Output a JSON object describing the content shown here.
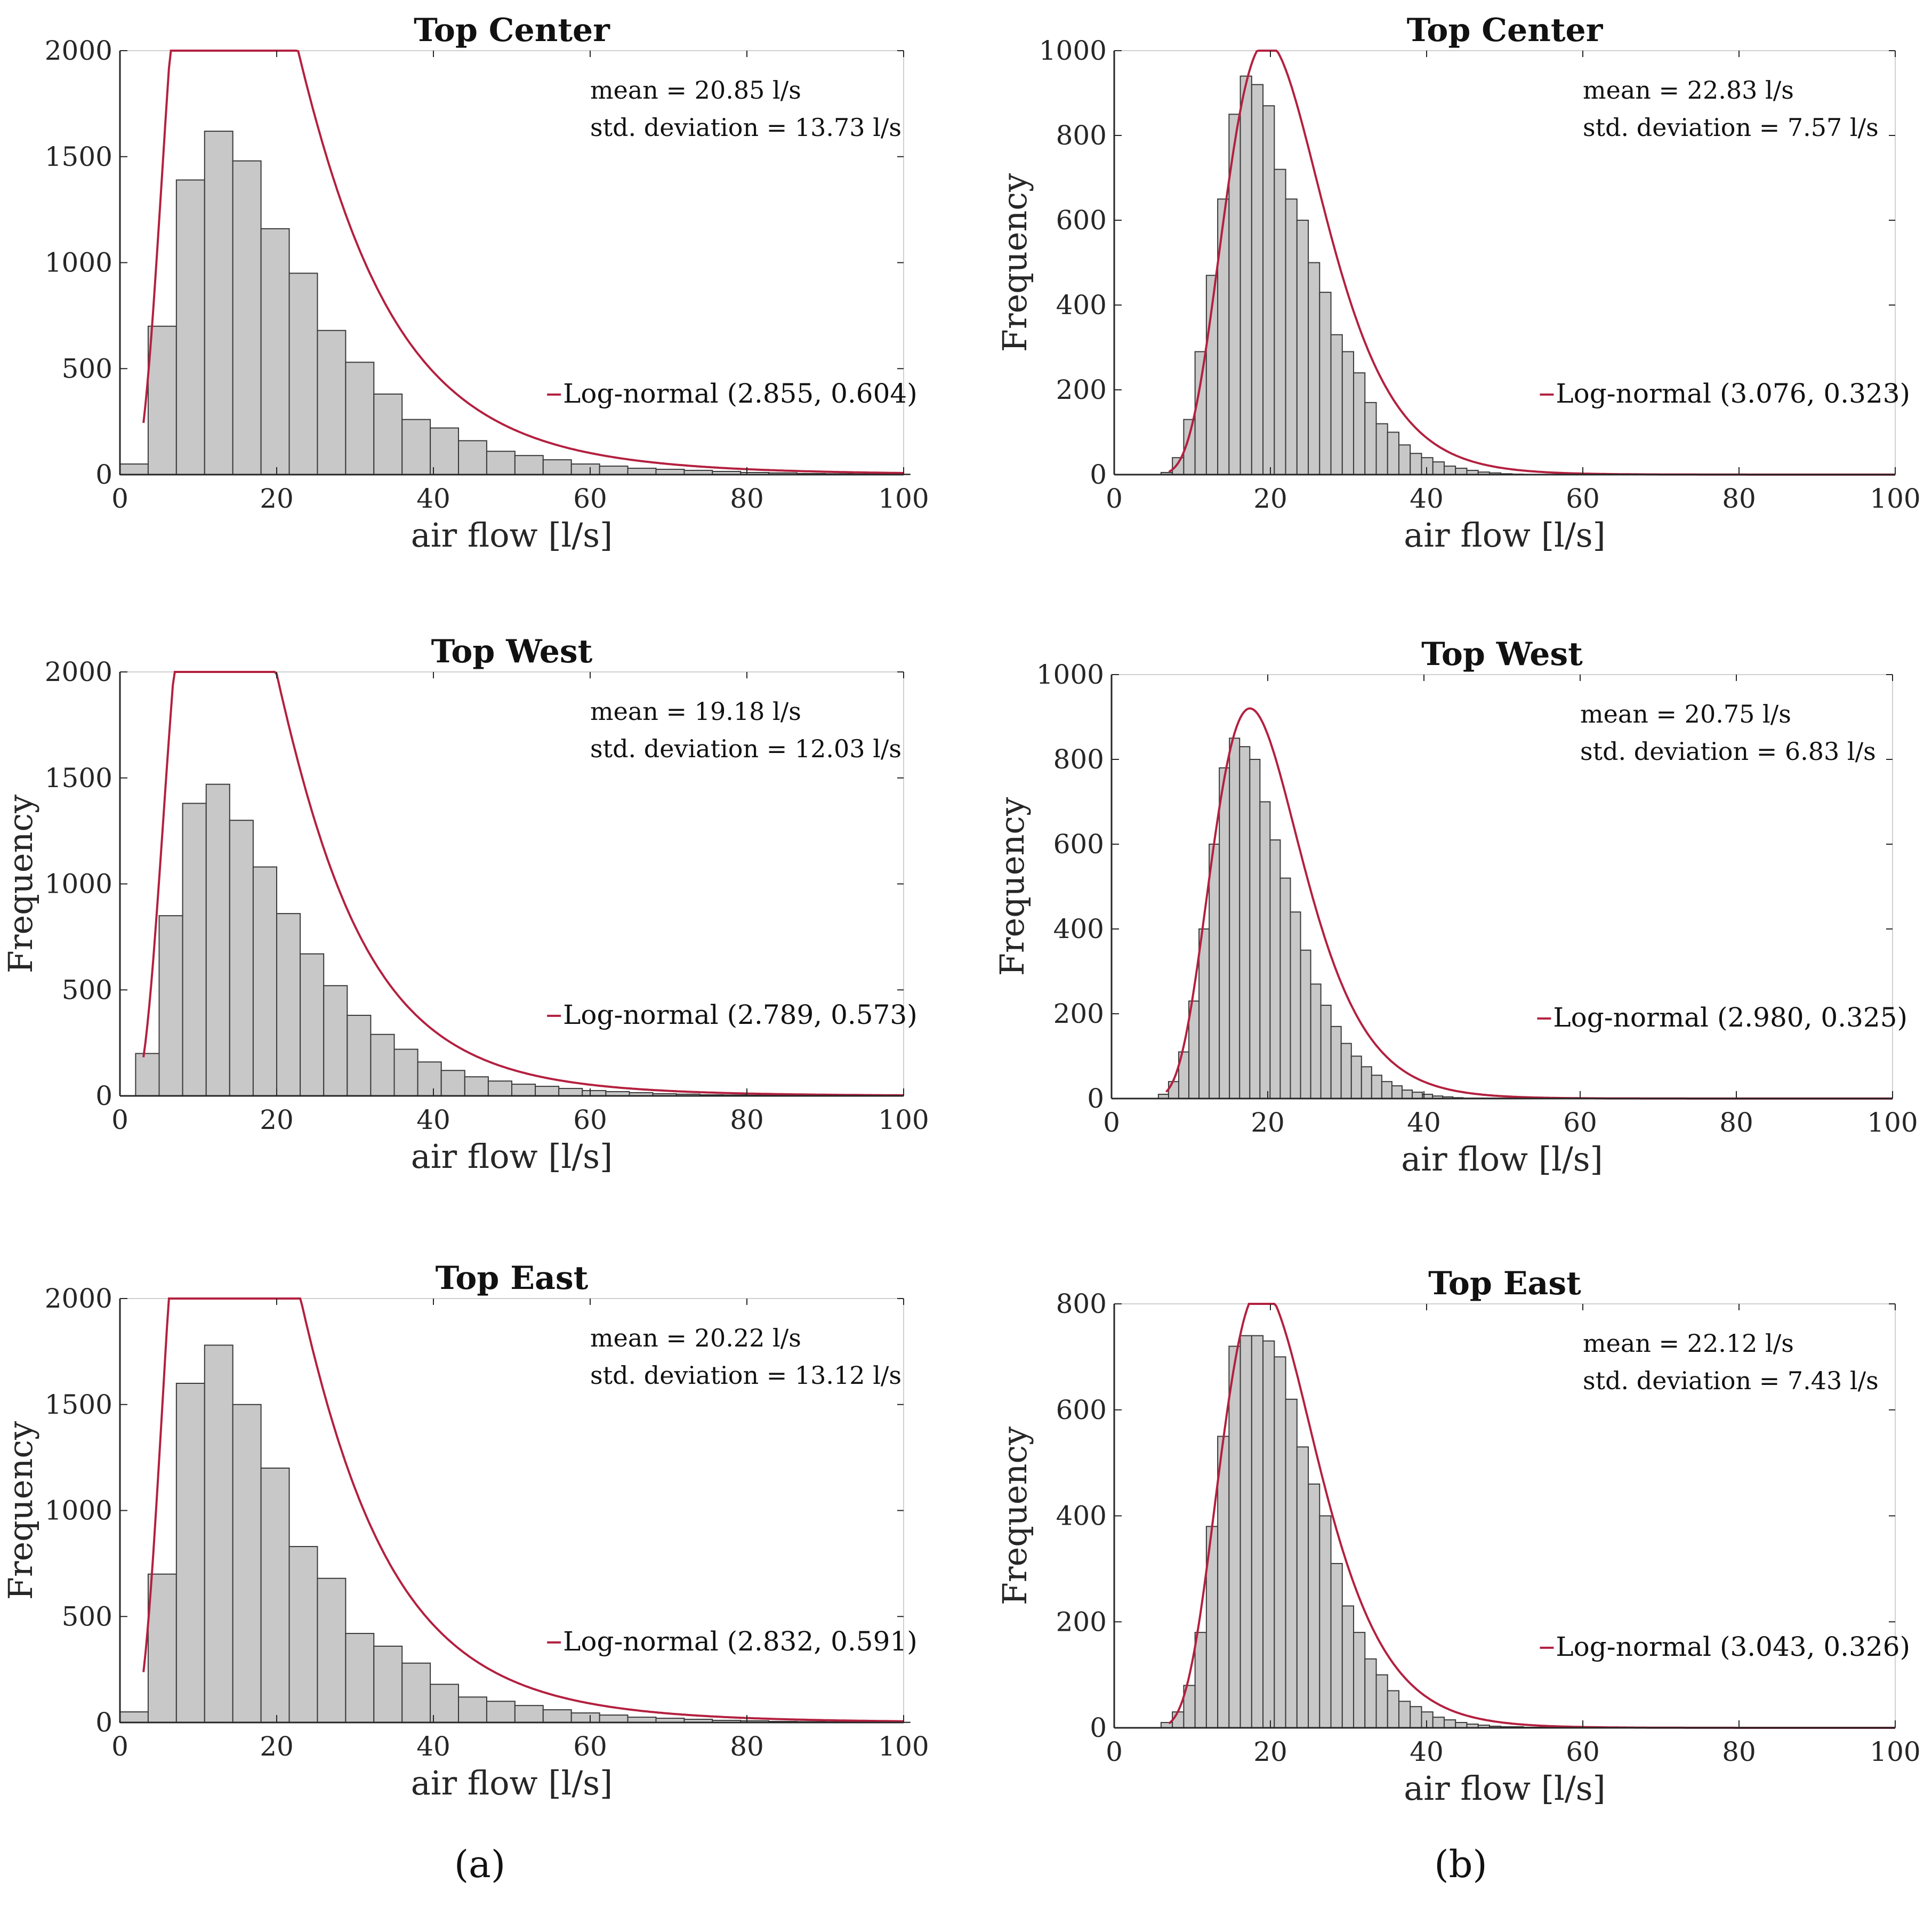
{
  "panel_labels": [
    "(a)",
    "(b)"
  ],
  "chart_data": [
    {
      "type": "histogram",
      "id": "a-top-center",
      "title": "Top Center",
      "xlabel": "air flow [l/s]",
      "ylabel": "",
      "xlim": [
        0,
        100
      ],
      "ylim": [
        0,
        2000
      ],
      "xticks": [
        0,
        20,
        40,
        60,
        80,
        100
      ],
      "yticks": [
        0,
        500,
        1000,
        1500,
        2000
      ],
      "stats": [
        "mean = 20.85 l/s",
        "std. deviation = 13.73 l/s"
      ],
      "legend": "Log-normal (2.855, 0.604)",
      "fit": {
        "mu": 2.855,
        "sigma": 0.604,
        "scale": 76000,
        "x_start": 3
      },
      "bin_start": 0,
      "bin_width": 3.6,
      "values": [
        50,
        700,
        1390,
        1620,
        1480,
        1160,
        950,
        680,
        530,
        380,
        260,
        220,
        160,
        110,
        90,
        70,
        50,
        40,
        30,
        25,
        20,
        15,
        10,
        8,
        5,
        4,
        3,
        2
      ]
    },
    {
      "type": "histogram",
      "id": "b-top-center",
      "title": "Top Center",
      "xlabel": "air flow [l/s]",
      "ylabel": "Frequency",
      "xlim": [
        0,
        100
      ],
      "ylim": [
        0,
        1000
      ],
      "xticks": [
        0,
        20,
        40,
        60,
        80,
        100
      ],
      "yticks": [
        0,
        200,
        400,
        600,
        800,
        1000
      ],
      "stats": [
        "mean = 22.83 l/s",
        "std. deviation = 7.57 l/s"
      ],
      "legend": "Log-normal (3.076, 0.323)",
      "fit": {
        "mu": 3.076,
        "sigma": 0.323,
        "scale": 17000,
        "x_start": 7
      },
      "bin_start": 6,
      "bin_width": 1.45,
      "values": [
        5,
        40,
        130,
        290,
        470,
        650,
        850,
        940,
        920,
        870,
        720,
        650,
        600,
        500,
        430,
        330,
        290,
        240,
        170,
        120,
        100,
        70,
        50,
        40,
        30,
        20,
        15,
        10,
        6,
        4,
        2,
        1
      ]
    },
    {
      "type": "histogram",
      "id": "a-top-west",
      "title": "Top West",
      "xlabel": "air flow [l/s]",
      "ylabel": "Frequency",
      "xlim": [
        0,
        100
      ],
      "ylim": [
        0,
        2000
      ],
      "xticks": [
        0,
        20,
        40,
        60,
        80,
        100
      ],
      "yticks": [
        0,
        500,
        1000,
        1500,
        2000
      ],
      "stats": [
        "mean = 19.18 l/s",
        "std. deviation = 12.03 l/s"
      ],
      "legend": "Log-normal (2.789, 0.573)",
      "fit": {
        "mu": 2.789,
        "sigma": 0.573,
        "scale": 61000,
        "x_start": 3
      },
      "bin_start": 2,
      "bin_width": 3.0,
      "values": [
        200,
        850,
        1380,
        1470,
        1300,
        1080,
        860,
        670,
        520,
        380,
        290,
        220,
        160,
        120,
        90,
        70,
        55,
        45,
        35,
        25,
        20,
        15,
        10,
        8,
        5,
        4,
        3,
        2,
        1,
        1
      ]
    },
    {
      "type": "histogram",
      "id": "b-top-west",
      "title": "Top West",
      "xlabel": "air flow [l/s]",
      "ylabel": "Frequency",
      "xlim": [
        0,
        100
      ],
      "ylim": [
        0,
        1000
      ],
      "xticks": [
        0,
        20,
        40,
        60,
        80,
        100
      ],
      "yticks": [
        0,
        200,
        400,
        600,
        800,
        1000
      ],
      "stats": [
        "mean = 20.75 l/s",
        "std. deviation = 6.83 l/s"
      ],
      "legend": "Log-normal (2.980, 0.325)",
      "fit": {
        "mu": 2.98,
        "sigma": 0.325,
        "scale": 14000,
        "x_start": 7
      },
      "bin_start": 6,
      "bin_width": 1.3,
      "values": [
        10,
        40,
        110,
        230,
        400,
        600,
        780,
        850,
        830,
        800,
        700,
        610,
        520,
        440,
        350,
        270,
        220,
        170,
        130,
        100,
        75,
        55,
        40,
        30,
        20,
        15,
        10,
        6,
        4,
        2,
        1,
        1,
        1,
        1,
        1,
        1,
        1
      ]
    },
    {
      "type": "histogram",
      "id": "a-top-east",
      "title": "Top East",
      "xlabel": "air flow [l/s]",
      "ylabel": "Frequency",
      "xlim": [
        0,
        100
      ],
      "ylim": [
        0,
        2000
      ],
      "xticks": [
        0,
        20,
        40,
        60,
        80,
        100
      ],
      "yticks": [
        0,
        500,
        1000,
        1500,
        2000
      ],
      "stats": [
        "mean = 20.22 l/s",
        "std. deviation = 13.12 l/s"
      ],
      "legend": "Log-normal (2.832, 0.591)",
      "fit": {
        "mu": 2.832,
        "sigma": 0.591,
        "scale": 78000,
        "x_start": 3
      },
      "bin_start": 0,
      "bin_width": 3.6,
      "values": [
        50,
        700,
        1600,
        1780,
        1500,
        1200,
        830,
        680,
        420,
        360,
        280,
        180,
        120,
        100,
        80,
        60,
        45,
        35,
        25,
        20,
        15,
        10,
        8,
        5,
        4,
        3,
        2,
        1
      ]
    },
    {
      "type": "histogram",
      "id": "b-top-east",
      "title": "Top East",
      "xlabel": "air flow [l/s]",
      "ylabel": "Frequency",
      "xlim": [
        0,
        100
      ],
      "ylim": [
        0,
        800
      ],
      "xticks": [
        0,
        20,
        40,
        60,
        80,
        100
      ],
      "yticks": [
        0,
        200,
        400,
        600,
        800
      ],
      "stats": [
        "mean = 22.12 l/s",
        "std. deviation = 7.43 l/s"
      ],
      "legend": "Log-normal (3.043, 0.326)",
      "fit": {
        "mu": 3.043,
        "sigma": 0.326,
        "scale": 13500,
        "x_start": 7
      },
      "bin_start": 6,
      "bin_width": 1.45,
      "values": [
        10,
        30,
        80,
        180,
        380,
        550,
        720,
        740,
        740,
        730,
        700,
        620,
        530,
        460,
        400,
        310,
        230,
        180,
        130,
        100,
        70,
        50,
        40,
        30,
        20,
        15,
        10,
        7,
        5,
        3,
        2,
        2,
        1,
        1,
        1,
        1,
        1,
        1,
        1,
        1,
        1,
        1
      ]
    }
  ]
}
